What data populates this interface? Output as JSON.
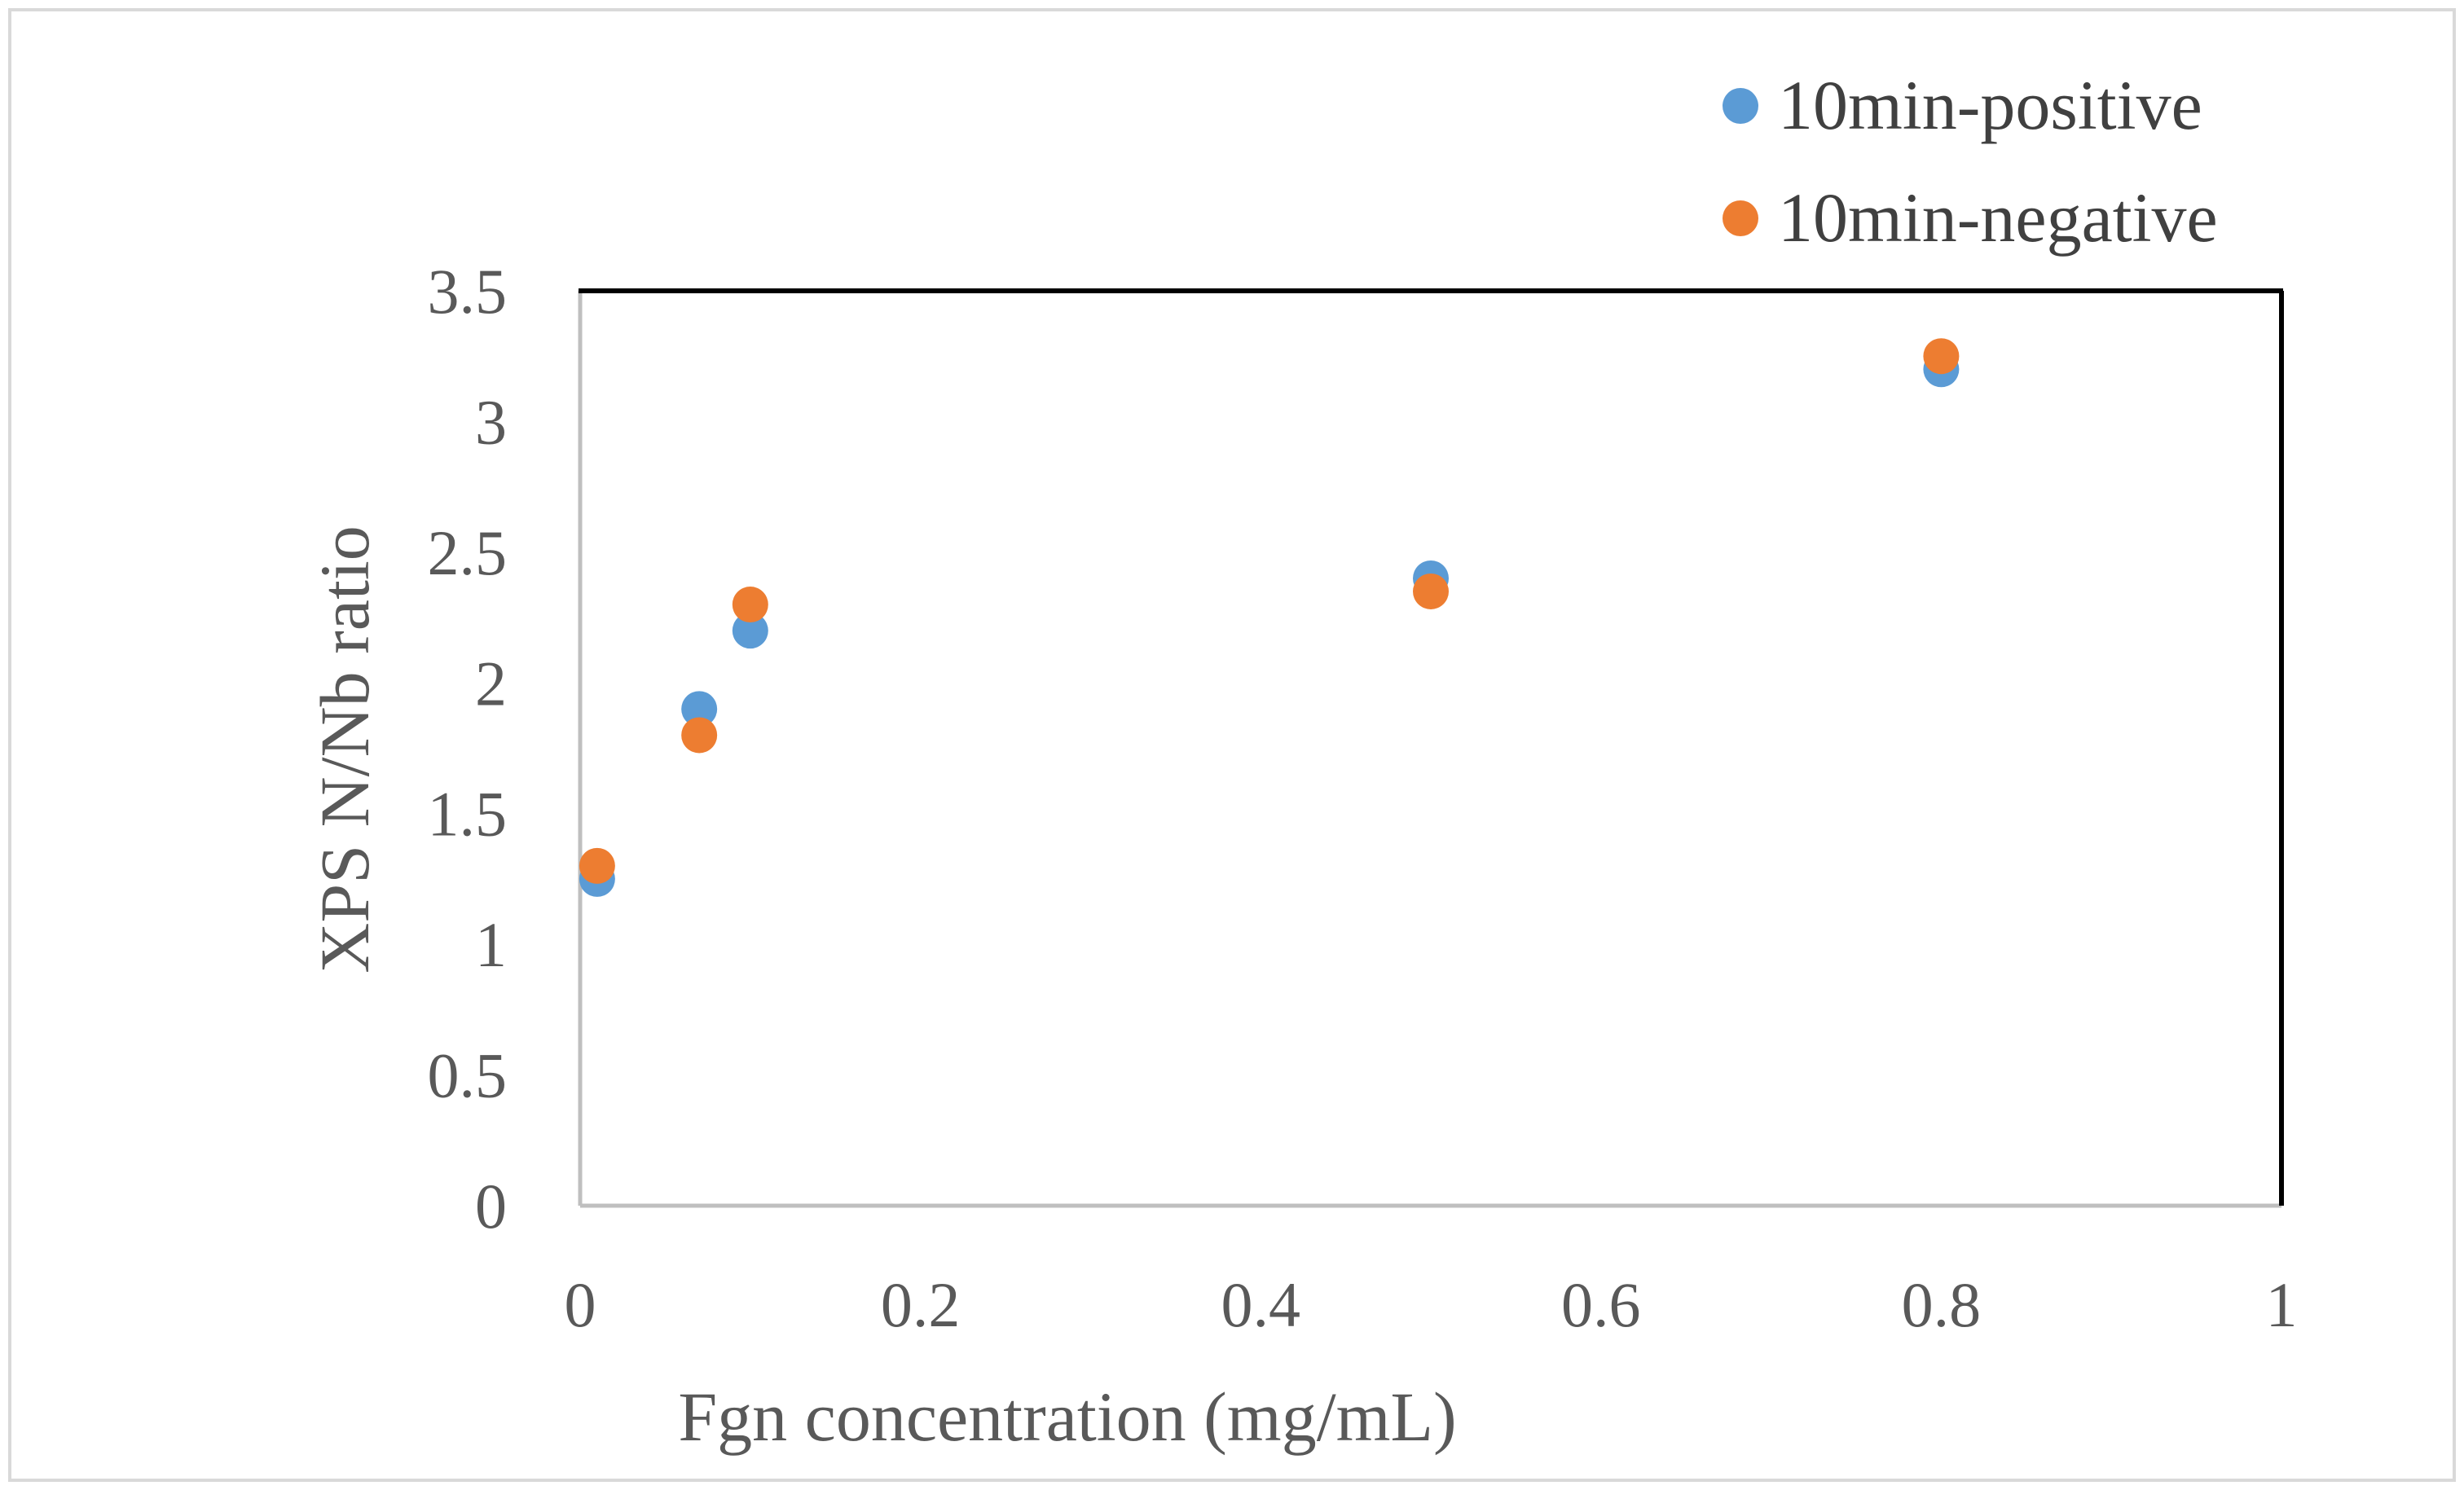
{
  "chart_data": {
    "type": "scatter",
    "title": "",
    "xlabel": "Fgn  concentration (mg/mL)",
    "ylabel": "XPS N/Nb ratio",
    "xlim": [
      0,
      1
    ],
    "ylim": [
      0,
      3.5
    ],
    "xticks": [
      0,
      0.2,
      0.4,
      0.6,
      0.8,
      1
    ],
    "xtick_labels": [
      "0",
      "0.2",
      "0.4",
      "0.6",
      "0.8",
      "1"
    ],
    "yticks": [
      0,
      0.5,
      1,
      1.5,
      2,
      2.5,
      3,
      3.5
    ],
    "ytick_labels": [
      "0",
      "0.5",
      "1",
      "1.5",
      "2",
      "2.5",
      "3",
      "3.5"
    ],
    "grid": false,
    "legend_position": "top-right",
    "series": [
      {
        "name": "10min-positive",
        "color": "#5B9BD5",
        "x": [
          0.01,
          0.07,
          0.1,
          0.5,
          0.8
        ],
        "y": [
          1.25,
          1.9,
          2.2,
          2.4,
          3.2
        ]
      },
      {
        "name": "10min-negative",
        "color": "#ED7D31",
        "x": [
          0.01,
          0.07,
          0.1,
          0.5,
          0.8
        ],
        "y": [
          1.3,
          1.8,
          2.3,
          2.35,
          3.25
        ]
      }
    ]
  }
}
